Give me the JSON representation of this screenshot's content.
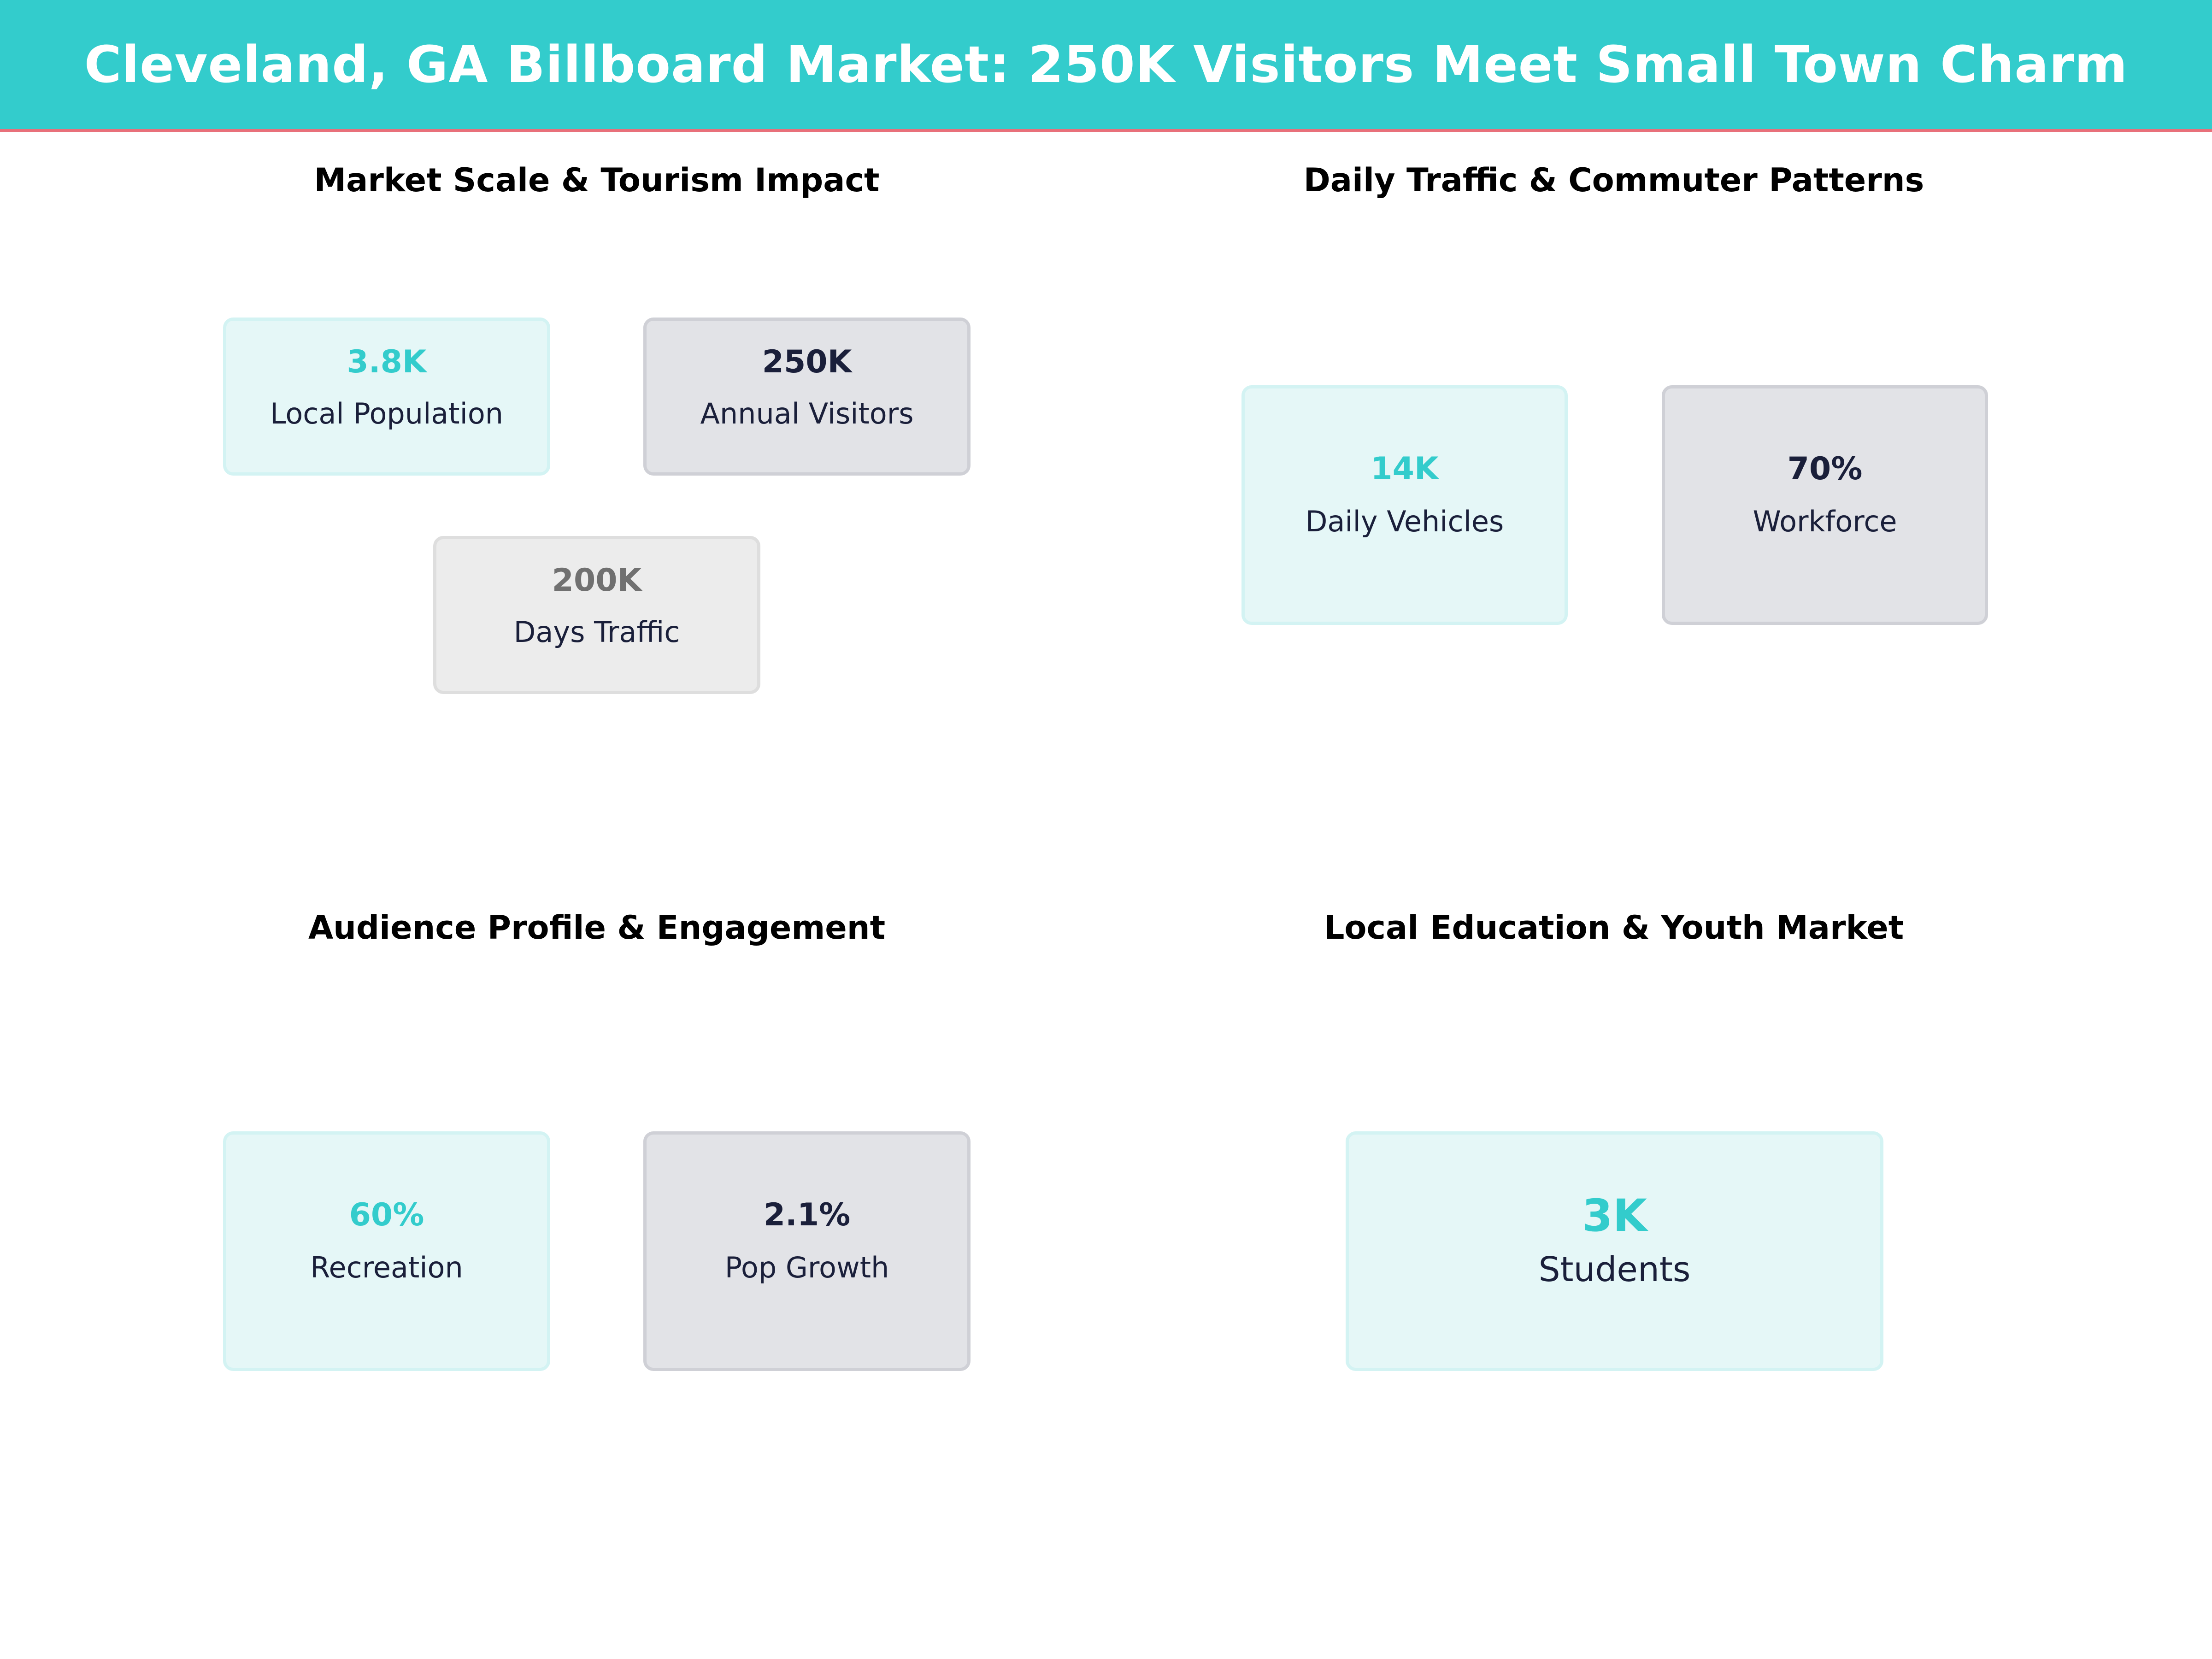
{
  "header": {
    "title": "Cleveland, GA Billboard Market: 250K Visitors Meet Small Town Charm"
  },
  "colors": {
    "accent": "#33cccc",
    "dark": "#1a1f3a",
    "muted": "#707070",
    "header_rule": "#e8707a"
  },
  "panels": [
    {
      "title": "Market Scale & Tourism Impact",
      "cards": [
        {
          "value": "3.8K",
          "label": "Local Population"
        },
        {
          "value": "250K",
          "label": "Annual Visitors"
        },
        {
          "value": "200K",
          "label": "Days Traffic"
        }
      ]
    },
    {
      "title": "Daily Traffic & Commuter Patterns",
      "cards": [
        {
          "value": "14K",
          "label": "Daily Vehicles"
        },
        {
          "value": "70%",
          "label": "Workforce"
        }
      ]
    },
    {
      "title": "Audience Profile & Engagement",
      "cards": [
        {
          "value": "60%",
          "label": "Recreation"
        },
        {
          "value": "2.1%",
          "label": "Pop Growth"
        }
      ]
    },
    {
      "title": "Local Education & Youth Market",
      "cards": [
        {
          "value": "3K",
          "label": "Students"
        }
      ]
    }
  ]
}
